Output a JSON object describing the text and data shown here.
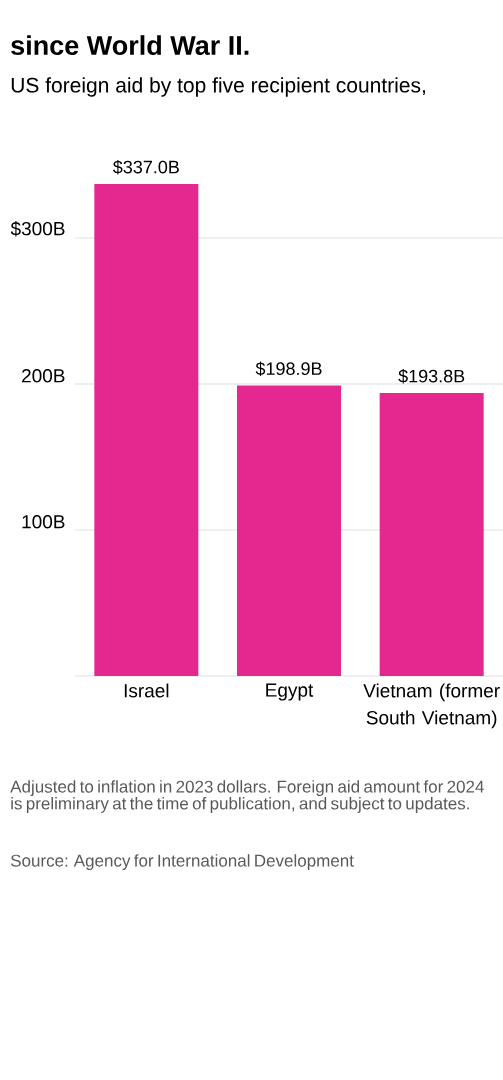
{
  "chart_data": {
    "type": "bar",
    "title": "since World War II.",
    "subtitle": "US foreign aid by top five recipient countries,",
    "categories": [
      "Israel",
      "Egypt",
      "Vietnam (former South Vietnam)"
    ],
    "values": [
      337.0,
      198.9,
      193.8
    ],
    "color": "#e5288f",
    "value_labels": [
      "$337.0B",
      "$198.9B",
      "$193.8B"
    ],
    "ylim": [
      0,
      337
    ],
    "yticks": [
      {
        "value": 100,
        "label": "100B"
      },
      {
        "value": 200,
        "label": "200B"
      },
      {
        "value": 300,
        "label": "$300B"
      }
    ],
    "grid": "y",
    "annotations": [
      "Adjusted to inflation in 2023 dollars. Foreign aid amount for 2024 is preliminary at the time of publication, and subject to updates.",
      "Source: Agency for International Development"
    ]
  }
}
